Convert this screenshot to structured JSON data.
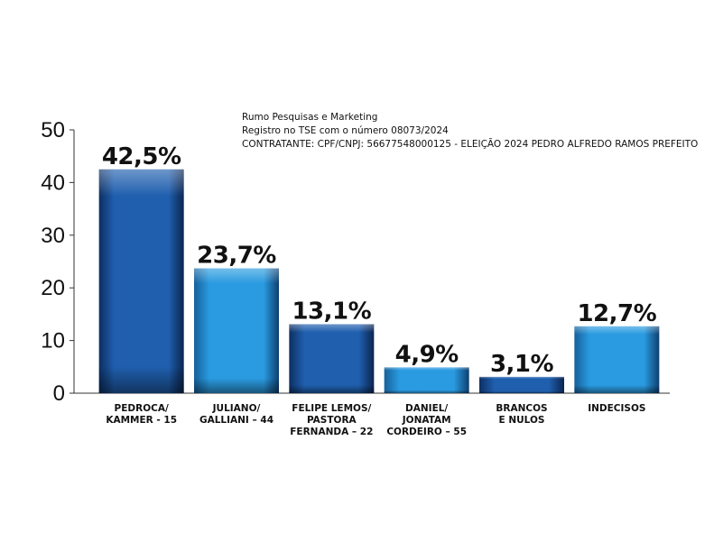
{
  "notes": [
    "Rumo Pesquisas e Marketing",
    "Registro no TSE com o número 08073/2024",
    "CONTRATANTE: CPF/CNPJ: 56677548000125 - ELEIÇÃO 2024 PEDRO ALFREDO RAMOS PREFEITO"
  ],
  "colors": {
    "dark_blue": "#1f5fae",
    "light_blue": "#2a9be0",
    "axis": "#333333"
  },
  "chart_data": {
    "type": "bar",
    "categories": [
      [
        "PEDROCA/",
        "KAMMER - 15"
      ],
      [
        "JULIANO/",
        "GALLIANI – 44"
      ],
      [
        "FELIPE LEMOS/",
        "PASTORA",
        "FERNANDA – 22"
      ],
      [
        "DANIEL/",
        "JONATAM",
        "CORDEIRO – 55"
      ],
      [
        "BRANCOS",
        "E NULOS"
      ],
      [
        "INDECISOS"
      ]
    ],
    "values": [
      42.5,
      23.7,
      13.1,
      4.9,
      3.1,
      12.7
    ],
    "value_labels": [
      "42,5%",
      "23,7%",
      "13,1%",
      "4,9%",
      "3,1%",
      "12,7%"
    ],
    "bar_colors": [
      "dark",
      "light",
      "dark",
      "light",
      "dark",
      "light"
    ],
    "yticks": [
      0,
      10,
      20,
      30,
      40,
      50
    ],
    "ylim": [
      0,
      50
    ],
    "grid": false,
    "legend": "none"
  }
}
